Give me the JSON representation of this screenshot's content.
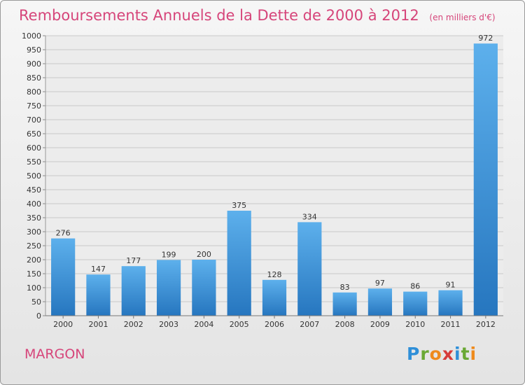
{
  "title": "Remboursements Annuels de la Dette de 2000 à 2012",
  "unit": "(en milliers d'€)",
  "commune": "MARGON",
  "brand": {
    "letters": [
      "P",
      "r",
      "o",
      "x",
      "i",
      "t",
      "i"
    ],
    "colors": [
      "#2f8fd8",
      "#6aa834",
      "#ef8a1c",
      "#d63b3b",
      "#2f8fd8",
      "#6aa834",
      "#ef8a1c"
    ]
  },
  "chart_data": {
    "type": "bar",
    "title": "Remboursements Annuels de la Dette de 2000 à 2012",
    "categories": [
      "2000",
      "2001",
      "2002",
      "2003",
      "2004",
      "2005",
      "2006",
      "2007",
      "2008",
      "2009",
      "2010",
      "2011",
      "2012"
    ],
    "values": [
      276,
      147,
      177,
      199,
      200,
      375,
      128,
      334,
      83,
      97,
      86,
      91,
      972
    ],
    "ylim": [
      0,
      1000
    ],
    "yticks": [
      0,
      50,
      100,
      150,
      200,
      250,
      300,
      350,
      400,
      450,
      500,
      550,
      600,
      650,
      700,
      750,
      800,
      850,
      900,
      950,
      1000
    ],
    "grid": true,
    "bar_color": "#3d95d8"
  }
}
